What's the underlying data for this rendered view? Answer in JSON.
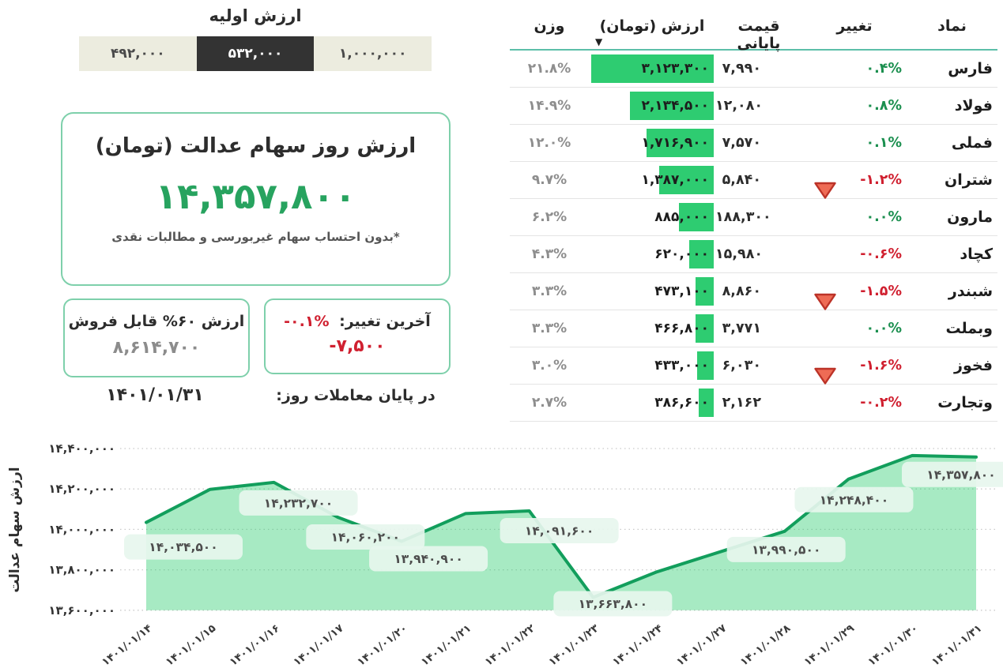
{
  "initial_value": {
    "title": "ارزش اولیه",
    "options": [
      {
        "label": "۱,۰۰۰,۰۰۰",
        "selected": false
      },
      {
        "label": "۵۳۲,۰۰۰",
        "selected": true
      },
      {
        "label": "۴۹۲,۰۰۰",
        "selected": false
      }
    ]
  },
  "main_card": {
    "title": "ارزش روز سهام عدالت (تومان)",
    "value": "۱۴,۳۵۷,۸۰۰",
    "footnote": "*بدون احتساب سهام غیربورسی و مطالبات نقدی"
  },
  "sellable_card": {
    "title": "ارزش ۶۰% قابل فروش",
    "value": "۸,۶۱۴,۷۰۰"
  },
  "change_card": {
    "label": "آخرین تغییر:",
    "percent": "-۰.۱%",
    "amount": "-۷,۵۰۰"
  },
  "date": "۱۴۰۱/۰۱/۳۱",
  "end_of_day_label": "در پایان معاملات روز:",
  "table": {
    "headers": {
      "symbol": "نماد",
      "change": "تغییر",
      "close": "قیمت پایانی",
      "value": "ارزش (تومان)",
      "weight": "وزن"
    },
    "sort_indicator": "▼",
    "rows": [
      {
        "symbol": "فارس",
        "change": "۰.۴%",
        "direction": "up",
        "triangle": false,
        "close": "۷,۹۹۰",
        "value": "۳,۱۲۳,۳۰۰",
        "value_num": 3123300,
        "weight": "۲۱.۸%"
      },
      {
        "symbol": "فولاد",
        "change": "۰.۸%",
        "direction": "up",
        "triangle": false,
        "close": "۱۲,۰۸۰",
        "value": "۲,۱۳۴,۵۰۰",
        "value_num": 2134500,
        "weight": "۱۴.۹%"
      },
      {
        "symbol": "فملی",
        "change": "۰.۱%",
        "direction": "up",
        "triangle": false,
        "close": "۷,۵۷۰",
        "value": "۱,۷۱۶,۹۰۰",
        "value_num": 1716900,
        "weight": "۱۲.۰%"
      },
      {
        "symbol": "شتران",
        "change": "-۱.۲%",
        "direction": "down",
        "triangle": true,
        "close": "۵,۸۴۰",
        "value": "۱,۳۸۷,۰۰۰",
        "value_num": 1387000,
        "weight": "۹.۷%"
      },
      {
        "symbol": "مارون",
        "change": "۰.۰%",
        "direction": "up",
        "triangle": false,
        "close": "۱۸۸,۳۰۰",
        "value": "۸۸۵,۰۰۰",
        "value_num": 885000,
        "weight": "۶.۲%"
      },
      {
        "symbol": "کچاد",
        "change": "-۰.۶%",
        "direction": "down",
        "triangle": false,
        "close": "۱۵,۹۸۰",
        "value": "۶۲۰,۰۰۰",
        "value_num": 620000,
        "weight": "۴.۳%"
      },
      {
        "symbol": "شبندر",
        "change": "-۱.۵%",
        "direction": "down",
        "triangle": true,
        "close": "۸,۸۶۰",
        "value": "۴۷۳,۱۰۰",
        "value_num": 473100,
        "weight": "۳.۳%"
      },
      {
        "symbol": "وبملت",
        "change": "۰.۰%",
        "direction": "up",
        "triangle": false,
        "close": "۳,۷۷۱",
        "value": "۴۶۶,۸۰۰",
        "value_num": 466800,
        "weight": "۳.۳%"
      },
      {
        "symbol": "فخوز",
        "change": "-۱.۶%",
        "direction": "down",
        "triangle": true,
        "close": "۶,۰۳۰",
        "value": "۴۳۳,۰۰۰",
        "value_num": 433000,
        "weight": "۳.۰%"
      },
      {
        "symbol": "وتجارت",
        "change": "-۰.۲%",
        "direction": "down",
        "triangle": false,
        "close": "۲,۱۶۲",
        "value": "۳۸۶,۶۰۰",
        "value_num": 386600,
        "weight": "۲.۷%"
      }
    ]
  },
  "chart_data": {
    "type": "area",
    "ylabel": "ارزش سهام عدالت",
    "xlabel": "",
    "ylim": [
      13600000,
      14400000
    ],
    "grid": "horizontal-dotted",
    "legend": "none",
    "line_color": "#129e5c",
    "fill_color": "#2ecc71",
    "yticks": [
      {
        "value": 14400000,
        "label": "۱۴,۴۰۰,۰۰۰"
      },
      {
        "value": 14200000,
        "label": "۱۴,۲۰۰,۰۰۰"
      },
      {
        "value": 14000000,
        "label": "۱۴,۰۰۰,۰۰۰"
      },
      {
        "value": 13800000,
        "label": "۱۳,۸۰۰,۰۰۰"
      },
      {
        "value": 13600000,
        "label": "۱۳,۶۰۰,۰۰۰"
      }
    ],
    "points": [
      {
        "date": "۱۴۰۱/۰۱/۱۴",
        "value": 14034500,
        "label": "۱۴,۰۳۴,۵۰۰"
      },
      {
        "date": "۱۴۰۱/۰۱/۱۵",
        "value": 14198000,
        "label": null,
        "estimated": true
      },
      {
        "date": "۱۴۰۱/۰۱/۱۶",
        "value": 14232700,
        "label": "۱۴,۲۳۲,۷۰۰"
      },
      {
        "date": "۱۴۰۱/۰۱/۱۷",
        "value": 14060200,
        "label": "۱۴,۰۶۰,۲۰۰"
      },
      {
        "date": "۱۴۰۱/۰۱/۲۰",
        "value": 13940900,
        "label": "۱۳,۹۴۰,۹۰۰"
      },
      {
        "date": "۱۴۰۱/۰۱/۲۱",
        "value": 14078000,
        "label": null,
        "estimated": true
      },
      {
        "date": "۱۴۰۱/۰۱/۲۲",
        "value": 14091600,
        "label": "۱۴,۰۹۱,۶۰۰"
      },
      {
        "date": "۱۴۰۱/۰۱/۲۳",
        "value": 13663800,
        "label": "۱۳,۶۶۳,۸۰۰"
      },
      {
        "date": "۱۴۰۱/۰۱/۲۴",
        "value": 13790000,
        "label": null,
        "estimated": true
      },
      {
        "date": "۱۴۰۱/۰۱/۲۷",
        "value": 13890000,
        "label": null,
        "estimated": true
      },
      {
        "date": "۱۴۰۱/۰۱/۲۸",
        "value": 13990500,
        "label": "۱۳,۹۹۰,۵۰۰"
      },
      {
        "date": "۱۴۰۱/۰۱/۲۹",
        "value": 14248400,
        "label": "۱۴,۲۴۸,۴۰۰"
      },
      {
        "date": "۱۴۰۱/۰۱/۳۰",
        "value": 14365300,
        "label": null,
        "estimated": true
      },
      {
        "date": "۱۴۰۱/۰۱/۳۱",
        "value": 14357800,
        "label": "۱۴,۳۵۷,۸۰۰"
      }
    ]
  },
  "colors": {
    "accent_green": "#2ecc71",
    "big_number_green": "#27a35f",
    "change_up_green": "#1b8f4f",
    "change_down_red": "#d02030",
    "card_border": "#7ed0ab",
    "header_underline": "#5cbfa9",
    "selected_segment": "#333333",
    "segment_bg": "#ececdf",
    "chart_fill": "#a8e3c4"
  }
}
